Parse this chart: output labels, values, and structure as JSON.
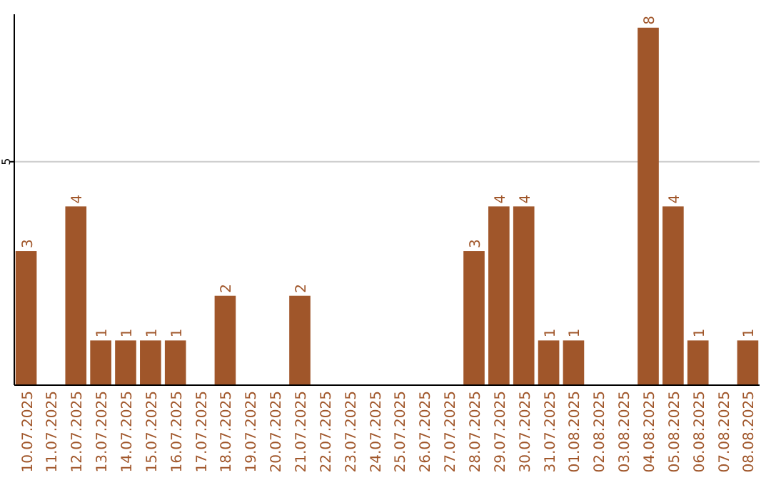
{
  "chart_data": {
    "type": "bar",
    "categories": [
      "10.07.2025",
      "11.07.2025",
      "12.07.2025",
      "13.07.2025",
      "14.07.2025",
      "15.07.2025",
      "16.07.2025",
      "17.07.2025",
      "18.07.2025",
      "19.07.2025",
      "20.07.2025",
      "21.07.2025",
      "22.07.2025",
      "23.07.2025",
      "24.07.2025",
      "25.07.2025",
      "26.07.2025",
      "27.07.2025",
      "28.07.2025",
      "29.07.2025",
      "30.07.2025",
      "31.07.2025",
      "01.08.2025",
      "02.08.2025",
      "03.08.2025",
      "04.08.2025",
      "05.08.2025",
      "06.08.2025",
      "07.08.2025",
      "08.08.2025"
    ],
    "values": [
      3,
      0,
      4,
      1,
      1,
      1,
      1,
      0,
      2,
      0,
      0,
      2,
      0,
      0,
      0,
      0,
      0,
      0,
      3,
      4,
      4,
      1,
      1,
      0,
      0,
      8,
      4,
      1,
      0,
      1
    ],
    "value_labels": [
      "3",
      null,
      "4",
      "1",
      "1",
      "1",
      "1",
      null,
      "2",
      null,
      null,
      "2",
      null,
      null,
      null,
      null,
      null,
      null,
      "3",
      "4",
      "4",
      "1",
      "1",
      null,
      null,
      "8",
      "4",
      "1",
      null,
      "1"
    ],
    "color": "#a0562a",
    "ylim": [
      0,
      8.3
    ],
    "yticks": [
      5
    ],
    "grid": "y"
  }
}
